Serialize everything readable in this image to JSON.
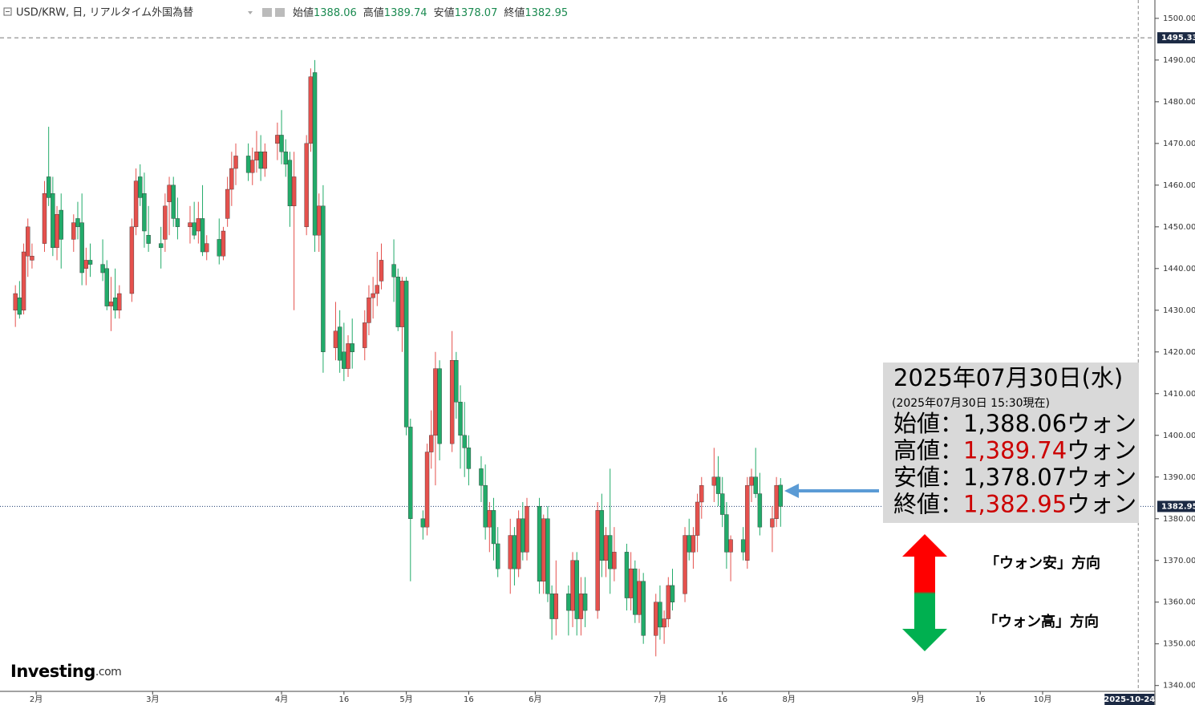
{
  "header": {
    "symbol": "USD/KRW, 日, リアルタイム外国為替",
    "ohlc": [
      {
        "label": "始値",
        "value": 1388.06
      },
      {
        "label": "高値",
        "value": 1389.74
      },
      {
        "label": "安値",
        "value": 1378.07
      },
      {
        "label": "終値",
        "value": 1382.95
      }
    ]
  },
  "chart_data": {
    "type": "candlestick",
    "up_color": "#e5514d",
    "down_color": "#22ab6a",
    "xlim": [
      23.3,
      301
    ],
    "ylim": [
      1338.6,
      1504.4
    ],
    "xticks": [
      {
        "value": 32,
        "label": "2月"
      },
      {
        "value": 60,
        "label": "3月"
      },
      {
        "value": 91,
        "label": "4月"
      },
      {
        "value": 106,
        "label": "16"
      },
      {
        "value": 121,
        "label": "5月"
      },
      {
        "value": 136,
        "label": "16"
      },
      {
        "value": 152,
        "label": "6月"
      },
      {
        "value": 182,
        "label": "7月"
      },
      {
        "value": 197,
        "label": "16"
      },
      {
        "value": 213,
        "label": "8月"
      },
      {
        "value": 244,
        "label": "9月"
      },
      {
        "value": 259,
        "label": "16"
      },
      {
        "value": 274,
        "label": "10月"
      }
    ],
    "yticks": [
      {
        "value": 1340,
        "label": "1340.00"
      },
      {
        "value": 1350,
        "label": "1350.00"
      },
      {
        "value": 1360,
        "label": "1360.00"
      },
      {
        "value": 1370,
        "label": "1370.00"
      },
      {
        "value": 1380,
        "label": "1380.00"
      },
      {
        "value": 1390,
        "label": "1390.00"
      },
      {
        "value": 1400,
        "label": "1400.00"
      },
      {
        "value": 1410,
        "label": "1410.00"
      },
      {
        "value": 1420,
        "label": "1420.00"
      },
      {
        "value": 1430,
        "label": "1430.00"
      },
      {
        "value": 1440,
        "label": "1440.00"
      },
      {
        "value": 1450,
        "label": "1450.00"
      },
      {
        "value": 1460,
        "label": "1460.00"
      },
      {
        "value": 1470,
        "label": "1470.00"
      },
      {
        "value": 1480,
        "label": "1480.00"
      },
      {
        "value": 1490,
        "label": "1490.00"
      },
      {
        "value": 1500,
        "label": "1500.00"
      }
    ],
    "hlines": [
      {
        "value": 1495.33,
        "label": "1495.33",
        "style": "dashed"
      },
      {
        "value": 1382.95,
        "label": "1382.95",
        "style": "dotted"
      }
    ],
    "date_marker": {
      "value": 297,
      "label": "2025-10-24"
    },
    "candles": [
      {
        "x": 27,
        "open": 1430,
        "high": 1436,
        "low": 1426,
        "close": 1434
      },
      {
        "x": 28,
        "open": 1433,
        "high": 1437,
        "low": 1428,
        "close": 1429
      },
      {
        "x": 29,
        "open": 1430,
        "high": 1446,
        "low": 1429,
        "close": 1444
      },
      {
        "x": 30,
        "open": 1443,
        "high": 1452,
        "low": 1438,
        "close": 1450
      },
      {
        "x": 31,
        "open": 1442,
        "high": 1446,
        "low": 1440,
        "close": 1443
      },
      {
        "x": 34,
        "open": 1446,
        "high": 1461,
        "low": 1444,
        "close": 1458
      },
      {
        "x": 35,
        "open": 1462,
        "high": 1474,
        "low": 1455,
        "close": 1457
      },
      {
        "x": 36,
        "open": 1458,
        "high": 1462,
        "low": 1443,
        "close": 1445
      },
      {
        "x": 37,
        "open": 1445,
        "high": 1455,
        "low": 1442,
        "close": 1453
      },
      {
        "x": 38,
        "open": 1454,
        "high": 1458,
        "low": 1440,
        "close": 1447
      },
      {
        "x": 41,
        "open": 1447,
        "high": 1453,
        "low": 1444,
        "close": 1451
      },
      {
        "x": 42,
        "open": 1452,
        "high": 1456,
        "low": 1447,
        "close": 1450
      },
      {
        "x": 43,
        "open": 1451,
        "high": 1458,
        "low": 1436,
        "close": 1439
      },
      {
        "x": 44,
        "open": 1440,
        "high": 1445,
        "low": 1436,
        "close": 1442
      },
      {
        "x": 45,
        "open": 1442,
        "high": 1446,
        "low": 1438,
        "close": 1441
      },
      {
        "x": 48,
        "open": 1441,
        "high": 1447,
        "low": 1437,
        "close": 1439
      },
      {
        "x": 49,
        "open": 1440,
        "high": 1442,
        "low": 1430,
        "close": 1431
      },
      {
        "x": 50,
        "open": 1431,
        "high": 1438,
        "low": 1425,
        "close": 1432
      },
      {
        "x": 51,
        "open": 1433,
        "high": 1440,
        "low": 1428,
        "close": 1430
      },
      {
        "x": 52,
        "open": 1430,
        "high": 1436,
        "low": 1428,
        "close": 1434
      },
      {
        "x": 55,
        "open": 1434,
        "high": 1452,
        "low": 1432,
        "close": 1450
      },
      {
        "x": 56,
        "open": 1450,
        "high": 1464,
        "low": 1448,
        "close": 1461
      },
      {
        "x": 57,
        "open": 1462,
        "high": 1465,
        "low": 1455,
        "close": 1457
      },
      {
        "x": 58,
        "open": 1458,
        "high": 1463,
        "low": 1445,
        "close": 1449
      },
      {
        "x": 59,
        "open": 1448,
        "high": 1455,
        "low": 1444,
        "close": 1446
      },
      {
        "x": 62,
        "open": 1446,
        "high": 1450,
        "low": 1440,
        "close": 1445
      },
      {
        "x": 63,
        "open": 1447,
        "high": 1458,
        "low": 1444,
        "close": 1455
      },
      {
        "x": 64,
        "open": 1456,
        "high": 1462,
        "low": 1448,
        "close": 1460
      },
      {
        "x": 65,
        "open": 1460,
        "high": 1462,
        "low": 1450,
        "close": 1452
      },
      {
        "x": 66,
        "open": 1452,
        "high": 1457,
        "low": 1447,
        "close": 1450
      },
      {
        "x": 69,
        "open": 1450,
        "high": 1455,
        "low": 1446,
        "close": 1451
      },
      {
        "x": 70,
        "open": 1451,
        "high": 1456,
        "low": 1447,
        "close": 1448
      },
      {
        "x": 71,
        "open": 1449,
        "high": 1456,
        "low": 1446,
        "close": 1452
      },
      {
        "x": 72,
        "open": 1452,
        "high": 1460,
        "low": 1443,
        "close": 1444
      },
      {
        "x": 73,
        "open": 1444,
        "high": 1448,
        "low": 1442,
        "close": 1446
      },
      {
        "x": 76,
        "open": 1447,
        "high": 1452,
        "low": 1441,
        "close": 1443
      },
      {
        "x": 77,
        "open": 1443,
        "high": 1450,
        "low": 1442,
        "close": 1449
      },
      {
        "x": 78,
        "open": 1452,
        "high": 1462,
        "low": 1450,
        "close": 1459
      },
      {
        "x": 79,
        "open": 1459,
        "high": 1468,
        "low": 1455,
        "close": 1464
      },
      {
        "x": 80,
        "open": 1464,
        "high": 1470,
        "low": 1460,
        "close": 1467
      },
      {
        "x": 83,
        "open": 1467,
        "high": 1470,
        "low": 1461,
        "close": 1463
      },
      {
        "x": 84,
        "open": 1463,
        "high": 1469,
        "low": 1460,
        "close": 1466
      },
      {
        "x": 85,
        "open": 1466,
        "high": 1473,
        "low": 1463,
        "close": 1468
      },
      {
        "x": 86,
        "open": 1468,
        "high": 1472,
        "low": 1461,
        "close": 1464
      },
      {
        "x": 87,
        "open": 1464,
        "high": 1470,
        "low": 1462,
        "close": 1468
      },
      {
        "x": 90,
        "open": 1470,
        "high": 1475,
        "low": 1466,
        "close": 1472
      },
      {
        "x": 91,
        "open": 1472,
        "high": 1478,
        "low": 1465,
        "close": 1468
      },
      {
        "x": 92,
        "open": 1468,
        "high": 1471,
        "low": 1462,
        "close": 1465
      },
      {
        "x": 93,
        "open": 1466,
        "high": 1468,
        "low": 1450,
        "close": 1455
      },
      {
        "x": 94,
        "open": 1455,
        "high": 1468,
        "low": 1430,
        "close": 1462
      },
      {
        "x": 97,
        "open": 1450,
        "high": 1472,
        "low": 1448,
        "close": 1470
      },
      {
        "x": 98,
        "open": 1470,
        "high": 1488,
        "low": 1468,
        "close": 1486
      },
      {
        "x": 99,
        "open": 1487,
        "high": 1490,
        "low": 1444,
        "close": 1448
      },
      {
        "x": 100,
        "open": 1448,
        "high": 1458,
        "low": 1444,
        "close": 1455
      },
      {
        "x": 101,
        "open": 1455,
        "high": 1460,
        "low": 1415,
        "close": 1420
      },
      {
        "x": 104,
        "open": 1421,
        "high": 1432,
        "low": 1418,
        "close": 1425
      },
      {
        "x": 105,
        "open": 1426,
        "high": 1430,
        "low": 1415,
        "close": 1418
      },
      {
        "x": 106,
        "open": 1420,
        "high": 1427,
        "low": 1413,
        "close": 1416
      },
      {
        "x": 107,
        "open": 1416,
        "high": 1424,
        "low": 1414,
        "close": 1422
      },
      {
        "x": 108,
        "open": 1422,
        "high": 1428,
        "low": 1416,
        "close": 1420
      },
      {
        "x": 111,
        "open": 1421,
        "high": 1430,
        "low": 1418,
        "close": 1427
      },
      {
        "x": 112,
        "open": 1427,
        "high": 1436,
        "low": 1424,
        "close": 1433
      },
      {
        "x": 113,
        "open": 1433,
        "high": 1438,
        "low": 1428,
        "close": 1434
      },
      {
        "x": 114,
        "open": 1434,
        "high": 1444,
        "low": 1431,
        "close": 1436
      },
      {
        "x": 115,
        "open": 1437,
        "high": 1446,
        "low": 1435,
        "close": 1442
      },
      {
        "x": 118,
        "open": 1441,
        "high": 1447,
        "low": 1432,
        "close": 1438
      },
      {
        "x": 119,
        "open": 1438,
        "high": 1440,
        "low": 1425,
        "close": 1426
      },
      {
        "x": 120,
        "open": 1426,
        "high": 1438,
        "low": 1420,
        "close": 1437
      },
      {
        "x": 121,
        "open": 1437,
        "high": 1438,
        "low": 1400,
        "close": 1402
      },
      {
        "x": 122,
        "open": 1402,
        "high": 1404,
        "low": 1365,
        "close": 1380
      },
      {
        "x": 125,
        "open": 1380,
        "high": 1382,
        "low": 1375,
        "close": 1378
      },
      {
        "x": 126,
        "open": 1378,
        "high": 1398,
        "low": 1376,
        "close": 1396
      },
      {
        "x": 127,
        "open": 1396,
        "high": 1406,
        "low": 1392,
        "close": 1400
      },
      {
        "x": 128,
        "open": 1400,
        "high": 1420,
        "low": 1388,
        "close": 1416
      },
      {
        "x": 129,
        "open": 1416,
        "high": 1418,
        "low": 1394,
        "close": 1398
      },
      {
        "x": 132,
        "open": 1398,
        "high": 1425,
        "low": 1396,
        "close": 1418
      },
      {
        "x": 133,
        "open": 1418,
        "high": 1420,
        "low": 1404,
        "close": 1408
      },
      {
        "x": 134,
        "open": 1408,
        "high": 1412,
        "low": 1392,
        "close": 1400
      },
      {
        "x": 135,
        "open": 1400,
        "high": 1408,
        "low": 1390,
        "close": 1397
      },
      {
        "x": 136,
        "open": 1397,
        "high": 1400,
        "low": 1388,
        "close": 1392
      },
      {
        "x": 139,
        "open": 1392,
        "high": 1395,
        "low": 1384,
        "close": 1388
      },
      {
        "x": 140,
        "open": 1388,
        "high": 1393,
        "low": 1375,
        "close": 1378
      },
      {
        "x": 141,
        "open": 1378,
        "high": 1384,
        "low": 1372,
        "close": 1382
      },
      {
        "x": 142,
        "open": 1382,
        "high": 1385,
        "low": 1370,
        "close": 1374
      },
      {
        "x": 143,
        "open": 1374,
        "high": 1378,
        "low": 1366,
        "close": 1368
      },
      {
        "x": 146,
        "open": 1368,
        "high": 1380,
        "low": 1362,
        "close": 1376
      },
      {
        "x": 147,
        "open": 1376,
        "high": 1378,
        "low": 1364,
        "close": 1368
      },
      {
        "x": 148,
        "open": 1368,
        "high": 1382,
        "low": 1366,
        "close": 1380
      },
      {
        "x": 149,
        "open": 1380,
        "high": 1384,
        "low": 1370,
        "close": 1372
      },
      {
        "x": 150,
        "open": 1372,
        "high": 1385,
        "low": 1370,
        "close": 1383
      },
      {
        "x": 153,
        "open": 1383,
        "high": 1385,
        "low": 1362,
        "close": 1365
      },
      {
        "x": 154,
        "open": 1365,
        "high": 1381,
        "low": 1362,
        "close": 1380
      },
      {
        "x": 155,
        "open": 1380,
        "high": 1383,
        "low": 1360,
        "close": 1362
      },
      {
        "x": 156,
        "open": 1362,
        "high": 1364,
        "low": 1351,
        "close": 1356
      },
      {
        "x": 157,
        "open": 1356,
        "high": 1370,
        "low": 1352,
        "close": 1362
      },
      {
        "x": 160,
        "open": 1362,
        "high": 1364,
        "low": 1352,
        "close": 1358
      },
      {
        "x": 161,
        "open": 1358,
        "high": 1372,
        "low": 1354,
        "close": 1370
      },
      {
        "x": 162,
        "open": 1370,
        "high": 1372,
        "low": 1352,
        "close": 1356
      },
      {
        "x": 163,
        "open": 1356,
        "high": 1366,
        "low": 1352,
        "close": 1362
      },
      {
        "x": 164,
        "open": 1362,
        "high": 1366,
        "low": 1354,
        "close": 1358
      },
      {
        "x": 167,
        "open": 1358,
        "high": 1384,
        "low": 1356,
        "close": 1382
      },
      {
        "x": 168,
        "open": 1382,
        "high": 1386,
        "low": 1366,
        "close": 1370
      },
      {
        "x": 169,
        "open": 1370,
        "high": 1378,
        "low": 1366,
        "close": 1376
      },
      {
        "x": 170,
        "open": 1376,
        "high": 1392,
        "low": 1362,
        "close": 1368
      },
      {
        "x": 171,
        "open": 1368,
        "high": 1378,
        "low": 1365,
        "close": 1372
      },
      {
        "x": 174,
        "open": 1372,
        "high": 1374,
        "low": 1358,
        "close": 1361
      },
      {
        "x": 175,
        "open": 1361,
        "high": 1372,
        "low": 1358,
        "close": 1368
      },
      {
        "x": 176,
        "open": 1368,
        "high": 1370,
        "low": 1355,
        "close": 1357
      },
      {
        "x": 177,
        "open": 1357,
        "high": 1368,
        "low": 1355,
        "close": 1365
      },
      {
        "x": 178,
        "open": 1365,
        "high": 1367,
        "low": 1350,
        "close": 1352
      },
      {
        "x": 181,
        "open": 1352,
        "high": 1362,
        "low": 1347,
        "close": 1360
      },
      {
        "x": 182,
        "open": 1360,
        "high": 1364,
        "low": 1351,
        "close": 1354
      },
      {
        "x": 183,
        "open": 1354,
        "high": 1358,
        "low": 1350,
        "close": 1356
      },
      {
        "x": 184,
        "open": 1356,
        "high": 1366,
        "low": 1354,
        "close": 1364
      },
      {
        "x": 185,
        "open": 1364,
        "high": 1368,
        "low": 1358,
        "close": 1360
      },
      {
        "x": 188,
        "open": 1362,
        "high": 1378,
        "low": 1360,
        "close": 1376
      },
      {
        "x": 189,
        "open": 1376,
        "high": 1380,
        "low": 1370,
        "close": 1372
      },
      {
        "x": 190,
        "open": 1372,
        "high": 1378,
        "low": 1368,
        "close": 1376
      },
      {
        "x": 191,
        "open": 1376,
        "high": 1386,
        "low": 1372,
        "close": 1384
      },
      {
        "x": 192,
        "open": 1384,
        "high": 1390,
        "low": 1380,
        "close": 1388
      },
      {
        "x": 195,
        "open": 1388,
        "high": 1397,
        "low": 1384,
        "close": 1390
      },
      {
        "x": 196,
        "open": 1390,
        "high": 1395,
        "low": 1383,
        "close": 1386
      },
      {
        "x": 197,
        "open": 1386,
        "high": 1390,
        "low": 1378,
        "close": 1381
      },
      {
        "x": 198,
        "open": 1381,
        "high": 1384,
        "low": 1368,
        "close": 1372
      },
      {
        "x": 199,
        "open": 1372,
        "high": 1376,
        "low": 1365,
        "close": 1375
      },
      {
        "x": 202,
        "open": 1375,
        "high": 1378,
        "low": 1370,
        "close": 1372
      },
      {
        "x": 203,
        "open": 1370,
        "high": 1390,
        "low": 1368,
        "close": 1388
      },
      {
        "x": 204,
        "open": 1388,
        "high": 1392,
        "low": 1384,
        "close": 1390
      },
      {
        "x": 205,
        "open": 1390,
        "high": 1397,
        "low": 1385,
        "close": 1386
      },
      {
        "x": 206,
        "open": 1386,
        "high": 1391,
        "low": 1376,
        "close": 1378
      },
      {
        "x": 209,
        "open": 1378,
        "high": 1383,
        "low": 1372,
        "close": 1380
      },
      {
        "x": 210,
        "open": 1380,
        "high": 1390,
        "low": 1378,
        "close": 1388
      },
      {
        "x": 211,
        "open": 1388.06,
        "high": 1389.74,
        "low": 1378.07,
        "close": 1382.95
      }
    ]
  },
  "info": {
    "date": "2025年07月30日(水)",
    "asof": "(2025年07月30日 15:30現在)",
    "rows": [
      {
        "label": "始値：",
        "value": "1,388.06",
        "unit": "ウォン",
        "color": "#000000"
      },
      {
        "label": "高値：",
        "value": "1,389.74",
        "unit": "ウォン",
        "color": "#cc0000"
      },
      {
        "label": "安値：",
        "value": "1,378.07",
        "unit": "ウォン",
        "color": "#000000"
      },
      {
        "label": "終値：",
        "value": "1,382.95",
        "unit": "ウォン",
        "color": "#cc0000"
      }
    ]
  },
  "direction": {
    "up": "「ウォン安」方向",
    "down": "「ウォン高」方向"
  },
  "logo": {
    "name": "Investing",
    "suffix": ".com"
  }
}
